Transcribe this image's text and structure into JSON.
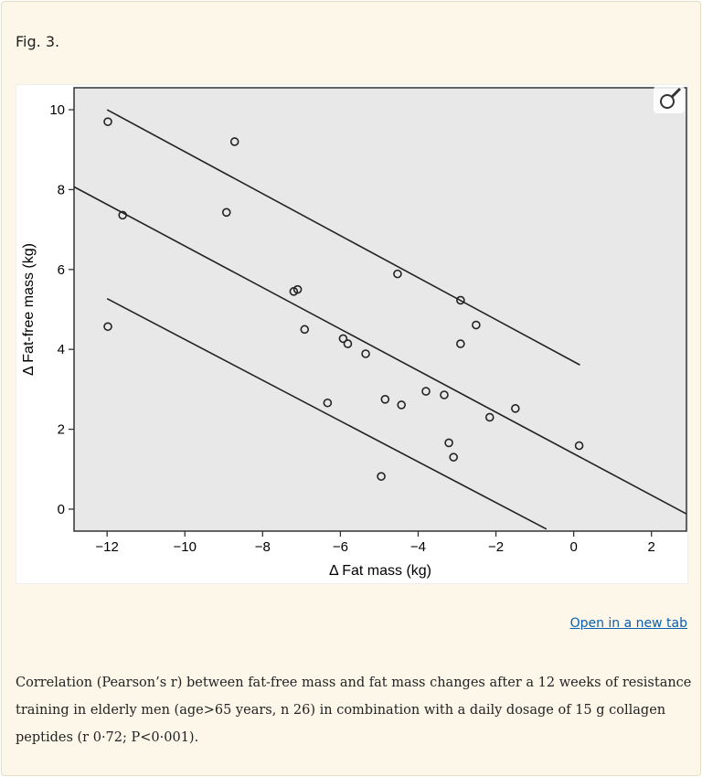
{
  "figure_label": "Fig. 3.",
  "open_link": "Open in a new tab",
  "caption": "Correlation (Pearson’s r) between fat-free mass and fat mass changes after a 12 weeks of resistance training in elderly men (age>65 years, n 26) in combination with a daily dosage of 15 g collagen peptides (r 0·72; P<0·001).",
  "zoom_icon": "magnifier-icon",
  "chart_data": {
    "type": "scatter",
    "xlabel": "Δ Fat mass (kg)",
    "ylabel": "Δ Fat-free mass (kg)",
    "xlim": [
      -12.85,
      2.9
    ],
    "ylim": [
      -0.55,
      10.55
    ],
    "xticks": [
      -12,
      -10,
      -8,
      -6,
      -4,
      -2,
      0,
      2
    ],
    "yticks": [
      0,
      2,
      4,
      6,
      8,
      10
    ],
    "grid": false,
    "background": "#e8e8e8",
    "points": [
      [
        -11.98,
        9.7
      ],
      [
        -8.72,
        9.2
      ],
      [
        -11.6,
        7.36
      ],
      [
        -8.93,
        7.43
      ],
      [
        -7.2,
        5.45
      ],
      [
        -7.1,
        5.5
      ],
      [
        -6.92,
        4.5
      ],
      [
        -11.98,
        4.57
      ],
      [
        -5.93,
        4.27
      ],
      [
        -5.81,
        4.14
      ],
      [
        -5.35,
        3.89
      ],
      [
        -4.53,
        5.89
      ],
      [
        -2.91,
        5.23
      ],
      [
        -2.51,
        4.61
      ],
      [
        -2.91,
        4.14
      ],
      [
        -6.33,
        2.66
      ],
      [
        -4.85,
        2.75
      ],
      [
        -4.43,
        2.61
      ],
      [
        -3.8,
        2.95
      ],
      [
        -3.33,
        2.86
      ],
      [
        -2.16,
        2.3
      ],
      [
        -1.5,
        2.52
      ],
      [
        -3.21,
        1.66
      ],
      [
        -3.09,
        1.3
      ],
      [
        -4.95,
        0.82
      ],
      [
        0.14,
        1.59
      ]
    ],
    "lines": [
      {
        "from": [
          -12.0,
          10.0
        ],
        "to": [
          0.16,
          3.61
        ]
      },
      {
        "from": [
          -12.85,
          8.07
        ],
        "to": [
          2.9,
          -0.12
        ]
      },
      {
        "from": [
          -12.0,
          5.27
        ],
        "to": [
          -0.7,
          -0.5
        ]
      }
    ]
  }
}
